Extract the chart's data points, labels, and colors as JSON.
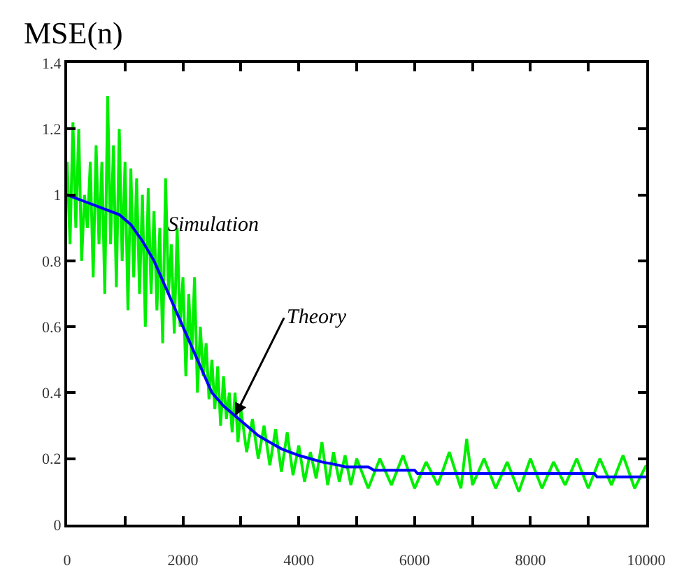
{
  "chart_data": {
    "type": "line",
    "title": "MSE(n)",
    "xlim": [
      0,
      10000
    ],
    "xticks": [
      0,
      {
        "value": 1000,
        "label": null
      },
      2000,
      {
        "value": 3000,
        "label": null
      },
      4000,
      {
        "value": 5000,
        "label": null
      },
      6000,
      {
        "value": 7000,
        "label": null
      },
      8000,
      {
        "value": 9000,
        "label": null
      },
      10000
    ],
    "ylim": [
      0,
      1.4
    ],
    "yticks": [
      0,
      0.2,
      0.4,
      0.6,
      0.8,
      1,
      1.2,
      1.4
    ],
    "series": [
      {
        "color": "#00ee00",
        "x": [
          0,
          50,
          100,
          150,
          200,
          250,
          300,
          350,
          400,
          450,
          500,
          550,
          600,
          650,
          700,
          750,
          800,
          850,
          900,
          950,
          1000,
          1050,
          1100,
          1150,
          1200,
          1250,
          1300,
          1350,
          1400,
          1450,
          1500,
          1550,
          1600,
          1650,
          1700,
          1750,
          1800,
          1850,
          1900,
          1950,
          2000,
          2050,
          2100,
          2150,
          2200,
          2250,
          2300,
          2350,
          2400,
          2450,
          2500,
          2550,
          2600,
          2650,
          2700,
          2750,
          2800,
          2850,
          2900,
          2950,
          3000,
          3100,
          3200,
          3300,
          3400,
          3500,
          3600,
          3700,
          3800,
          3900,
          4000,
          4100,
          4200,
          4300,
          4400,
          4500,
          4600,
          4700,
          4800,
          4900,
          5000,
          5200,
          5400,
          5600,
          5800,
          6000,
          6200,
          6400,
          6600,
          6800,
          6900,
          7000,
          7200,
          7400,
          7600,
          7800,
          8000,
          8200,
          8400,
          8600,
          8800,
          9000,
          9200,
          9400,
          9600,
          9800,
          10000
        ],
        "values": [
          1.1,
          0.85,
          1.22,
          0.9,
          1.2,
          0.8,
          1.0,
          0.9,
          1.1,
          0.75,
          1.15,
          0.85,
          1.1,
          0.7,
          1.3,
          0.85,
          1.15,
          0.72,
          1.2,
          0.8,
          1.1,
          0.65,
          1.08,
          0.75,
          1.05,
          0.7,
          1.0,
          0.6,
          1.02,
          0.7,
          0.95,
          0.65,
          0.9,
          0.55,
          1.05,
          0.7,
          0.85,
          0.58,
          0.9,
          0.6,
          0.75,
          0.45,
          0.7,
          0.5,
          0.75,
          0.4,
          0.6,
          0.45,
          0.55,
          0.38,
          0.5,
          0.35,
          0.48,
          0.3,
          0.45,
          0.32,
          0.4,
          0.28,
          0.4,
          0.25,
          0.35,
          0.22,
          0.32,
          0.2,
          0.3,
          0.18,
          0.29,
          0.16,
          0.28,
          0.15,
          0.24,
          0.13,
          0.22,
          0.14,
          0.25,
          0.12,
          0.22,
          0.13,
          0.21,
          0.12,
          0.2,
          0.11,
          0.2,
          0.12,
          0.21,
          0.11,
          0.19,
          0.12,
          0.22,
          0.11,
          0.26,
          0.12,
          0.2,
          0.11,
          0.19,
          0.1,
          0.2,
          0.11,
          0.19,
          0.12,
          0.2,
          0.11,
          0.2,
          0.12,
          0.21,
          0.11,
          0.18
        ]
      },
      {
        "color": "#0000ff",
        "x": [
          0,
          300,
          600,
          900,
          1100,
          1300,
          1500,
          1700,
          1800,
          1900,
          2000,
          2200,
          2400,
          2500,
          2700,
          2900,
          3100,
          3300,
          3500,
          3700,
          4000,
          4200,
          4400,
          4700,
          4800,
          5200,
          5300,
          6000,
          6050,
          9100,
          9150,
          10000
        ],
        "values": [
          1.0,
          0.98,
          0.96,
          0.94,
          0.91,
          0.86,
          0.8,
          0.72,
          0.68,
          0.64,
          0.6,
          0.52,
          0.44,
          0.4,
          0.36,
          0.33,
          0.3,
          0.27,
          0.25,
          0.23,
          0.21,
          0.2,
          0.19,
          0.18,
          0.175,
          0.175,
          0.165,
          0.165,
          0.155,
          0.155,
          0.145,
          0.145
        ]
      }
    ],
    "annotations": [
      "Simulation",
      {
        "text": "Theory",
        "x": 2900,
        "y": 0.33
      }
    ]
  }
}
